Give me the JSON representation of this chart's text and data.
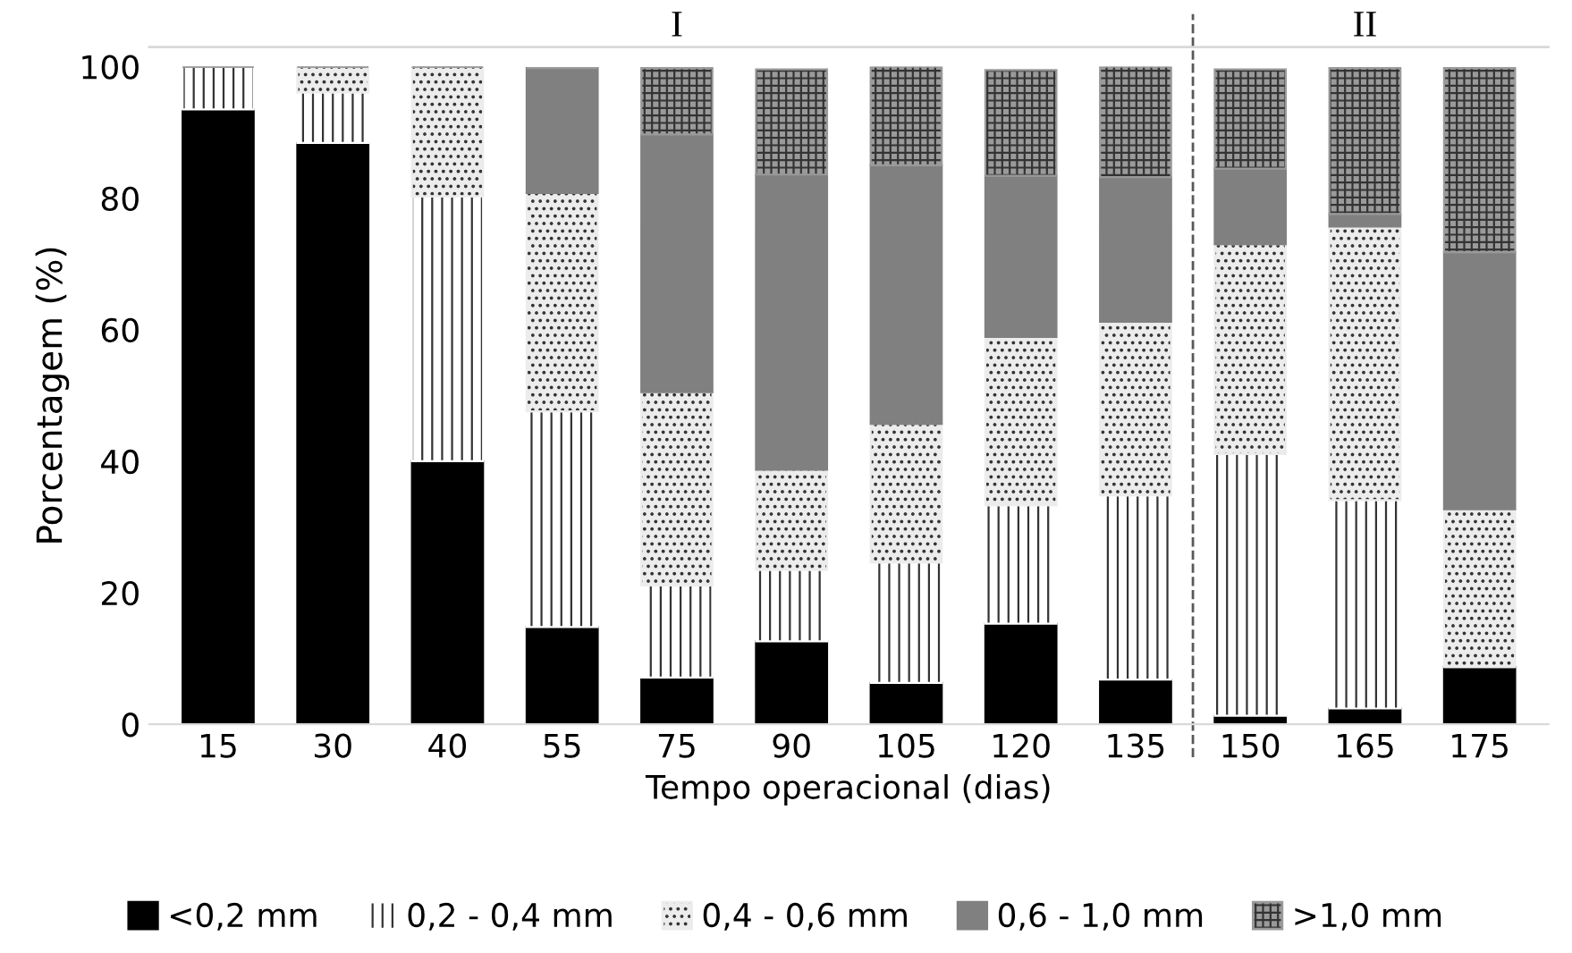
{
  "chart_data": {
    "type": "bar",
    "stacked": true,
    "xlabel": "Tempo operacional (dias)",
    "ylabel": "Porcentagem (%)",
    "categories": [
      "15",
      "30",
      "40",
      "55",
      "75",
      "90",
      "105",
      "120",
      "135",
      "150",
      "165",
      "175"
    ],
    "series": [
      {
        "name": "<0,2 mm",
        "color": "#000000",
        "values": [
          93.5,
          88.4,
          40.0,
          14.8,
          7.1,
          12.6,
          6.3,
          15.3,
          6.8,
          1.3,
          2.4,
          8.7
        ]
      },
      {
        "name": "0,2 - 0,4 mm",
        "color": "#ffffff",
        "values": [
          6.5,
          7.7,
          40.3,
          32.8,
          14.0,
          10.9,
          18.3,
          18.0,
          28.0,
          39.8,
          31.7,
          0
        ]
      },
      {
        "name": "0,4 - 0,6 mm",
        "color": "#ececec",
        "values": [
          0,
          3.9,
          19.7,
          33.2,
          29.4,
          15.2,
          21.1,
          25.6,
          26.4,
          31.9,
          41.6,
          24.0
        ]
      },
      {
        "name": "0,6 - 1,0 mm",
        "color": "#808080",
        "values": [
          0,
          0,
          0,
          19.0,
          39.2,
          44.9,
          39.3,
          24.5,
          22.0,
          11.5,
          1.9,
          39.1
        ]
      },
      {
        "name": ">1,0 mm",
        "color": "#9a9a9a",
        "values": [
          0,
          0,
          0,
          0,
          10.1,
          16.0,
          15.0,
          16.1,
          16.8,
          15.1,
          22.2,
          28.0
        ]
      }
    ],
    "ylim": [
      0,
      100
    ],
    "yticks": [
      0,
      20,
      40,
      60,
      80,
      100
    ],
    "grid": false,
    "legend": "bottom",
    "annotations": [
      "I",
      "II"
    ]
  }
}
